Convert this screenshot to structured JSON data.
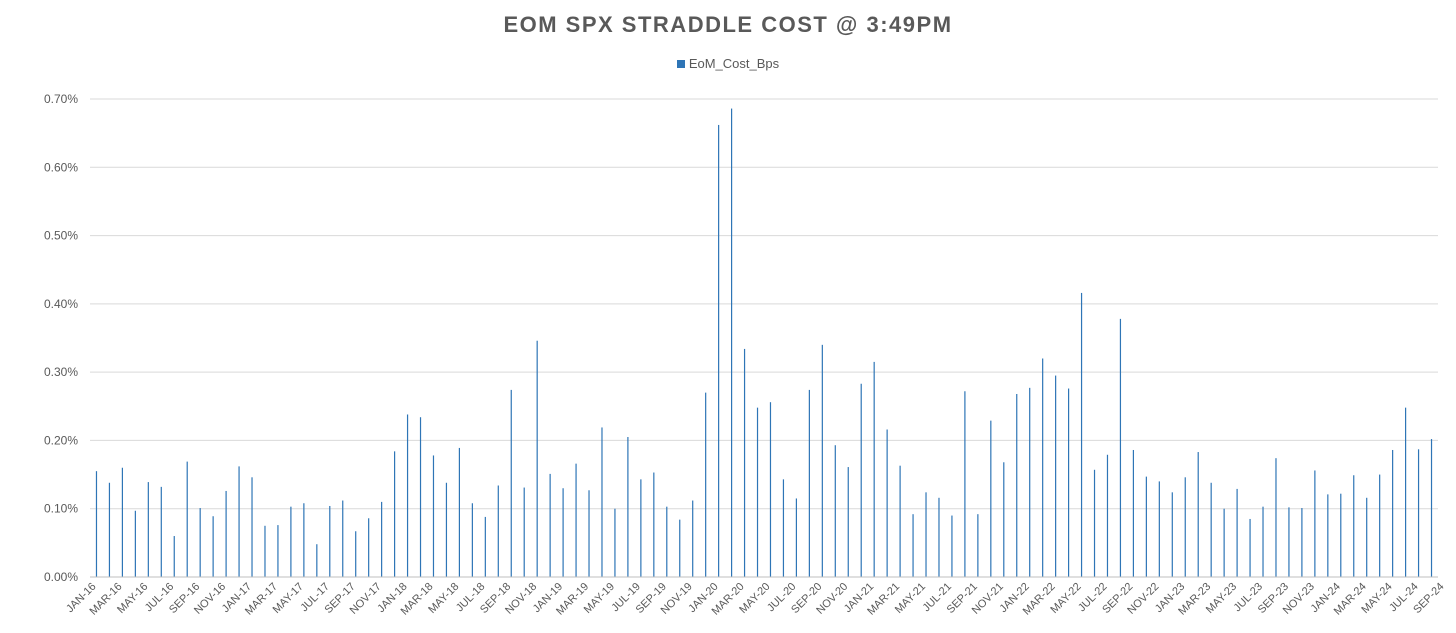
{
  "chart_data": {
    "type": "bar",
    "title": "EOM SPX STRADDLE COST @ 3:49PM",
    "xlabel": "",
    "ylabel": "",
    "series": [
      {
        "name": "EoM_Cost_Bps",
        "color": "#2E75B6",
        "values": [
          0.155,
          0.138,
          0.16,
          0.097,
          0.139,
          0.132,
          0.06,
          0.169,
          0.101,
          0.089,
          0.126,
          0.162,
          0.146,
          0.075,
          0.076,
          0.103,
          0.108,
          0.048,
          0.104,
          0.112,
          0.067,
          0.086,
          0.11,
          0.184,
          0.238,
          0.234,
          0.178,
          0.138,
          0.189,
          0.108,
          0.088,
          0.134,
          0.274,
          0.131,
          0.346,
          0.151,
          0.13,
          0.166,
          0.127,
          0.219,
          0.1,
          0.205,
          0.143,
          0.153,
          0.103,
          0.084,
          0.112,
          0.27,
          0.662,
          0.686,
          0.334,
          0.248,
          0.256,
          0.143,
          0.115,
          0.274,
          0.34,
          0.193,
          0.161,
          0.283,
          0.315,
          0.216,
          0.163,
          0.092,
          0.124,
          0.116,
          0.09,
          0.272,
          0.092,
          0.229,
          0.168,
          0.268,
          0.277,
          0.32,
          0.295,
          0.276,
          0.416,
          0.157,
          0.179,
          0.378,
          0.186,
          0.147,
          0.14,
          0.124,
          0.146,
          0.183,
          0.138,
          0.1,
          0.129,
          0.085,
          0.103,
          0.174,
          0.102,
          0.101,
          0.156,
          0.121,
          0.122,
          0.149,
          0.116,
          0.15,
          0.186,
          0.248,
          0.187,
          0.202
        ]
      }
    ],
    "category_labels": [
      "JAN-16",
      "MAR-16",
      "MAY-16",
      "JUL-16",
      "SEP-16",
      "NOV-16",
      "JAN-17",
      "MAR-17",
      "MAY-17",
      "JUL-17",
      "SEP-17",
      "NOV-17",
      "JAN-18",
      "MAR-18",
      "MAY-18",
      "JUL-18",
      "SEP-18",
      "NOV-18",
      "JAN-19",
      "MAR-19",
      "MAY-19",
      "JUL-19",
      "SEP-19",
      "NOV-19",
      "JAN-20",
      "MAR-20",
      "MAY-20",
      "JUL-20",
      "SEP-20",
      "NOV-20",
      "JAN-21",
      "MAR-21",
      "MAY-21",
      "JUL-21",
      "SEP-21",
      "NOV-21",
      "JAN-22",
      "MAR-22",
      "MAY-22",
      "JUL-22",
      "SEP-22",
      "NOV-22",
      "JAN-23",
      "MAR-23",
      "MAY-23",
      "JUL-23",
      "SEP-23",
      "NOV-23",
      "JAN-24",
      "MAR-24",
      "MAY-24",
      "JUL-24",
      "SEP-24"
    ],
    "ylim": [
      0,
      0.7
    ],
    "y_ticks": [
      "0.00%",
      "0.10%",
      "0.20%",
      "0.30%",
      "0.40%",
      "0.50%",
      "0.60%",
      "0.70%"
    ],
    "grid": true,
    "legend_position": "top-center"
  }
}
